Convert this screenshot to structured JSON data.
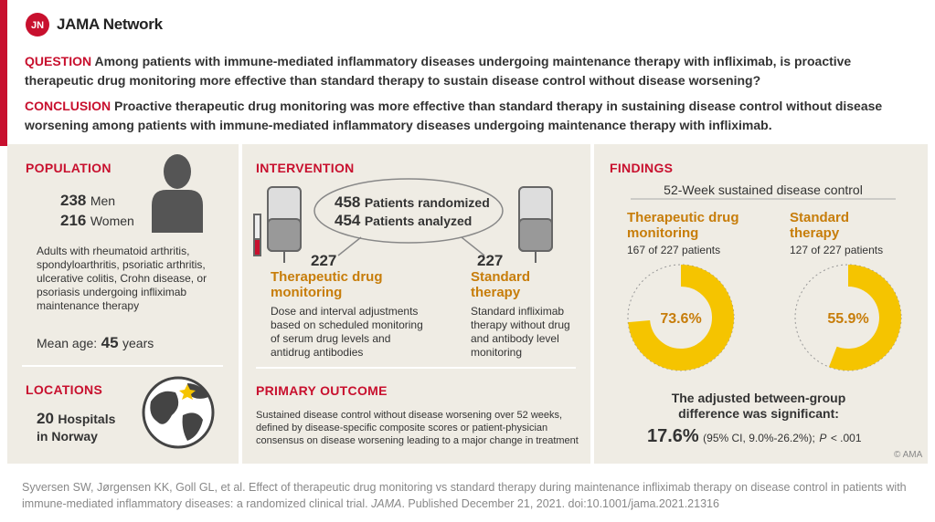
{
  "header": {
    "logo": "JN",
    "brand": "JAMA Network"
  },
  "question": {
    "label": "QUESTION",
    "text": "Among patients with immune-mediated inflammatory diseases undergoing maintenance therapy with infliximab, is proactive therapeutic drug monitoring more effective than standard therapy to sustain disease control without disease worsening?"
  },
  "conclusion": {
    "label": "CONCLUSION",
    "text": "Proactive therapeutic drug monitoring was more effective than standard therapy in sustaining disease control without disease worsening among patients with immune-mediated inflammatory diseases undergoing maintenance therapy with infliximab."
  },
  "population": {
    "heading": "POPULATION",
    "men": {
      "count": 238,
      "label": "Men"
    },
    "women": {
      "count": 216,
      "label": "Women"
    },
    "description": "Adults with rheumatoid arthritis, spondyloarthritis, psoriatic arthritis, ulcerative colitis, Crohn disease, or psoriasis undergoing infliximab maintenance therapy",
    "mean_age": {
      "label": "Mean age:",
      "value": 45,
      "unit": "years"
    }
  },
  "locations": {
    "heading": "LOCATIONS",
    "count": 20,
    "label": "Hospitals in Norway"
  },
  "intervention": {
    "heading": "INTERVENTION",
    "randomized": {
      "count": 458,
      "label": "Patients randomized"
    },
    "analyzed": {
      "count": 454,
      "label": "Patients analyzed"
    },
    "arms": [
      {
        "n": 227,
        "name": "Therapeutic drug monitoring",
        "description": "Dose and interval adjustments based on scheduled monitoring of serum drug levels and antidrug antibodies"
      },
      {
        "n": 227,
        "name": "Standard therapy",
        "description": "Standard infliximab therapy without drug and antibody level monitoring"
      }
    ]
  },
  "primary_outcome": {
    "heading": "PRIMARY OUTCOME",
    "text": "Sustained disease control without disease worsening over 52 weeks, defined by disease-specific composite scores or patient-physician consensus on disease worsening leading to a major change in treatment"
  },
  "findings": {
    "heading": "FINDINGS",
    "subtitle": "52-Week sustained disease control",
    "groups": [
      {
        "name": "Therapeutic drug monitoring",
        "patients": "167 of 227 patients",
        "percent": {
          "value": 73.6,
          "label": "73.6%"
        }
      },
      {
        "name": "Standard therapy",
        "patients": "127 of 227 patients",
        "percent": {
          "value": 55.9,
          "label": "55.9%"
        }
      }
    ],
    "difference_text": "The adjusted between-group difference was significant:",
    "difference": "17.6%",
    "ci": "(95% CI, 9.0%-26.2%);",
    "p_label": "P",
    "p_value": "< .001"
  },
  "copyright": "© AMA",
  "citation": {
    "before": "Syversen SW, Jørgensen KK, Goll GL, et al. Effect of therapeutic drug monitoring vs standard therapy during maintenance infliximab therapy on disease control in patients with immune-mediated inflammatory diseases: a randomized clinical trial.",
    "journal": "JAMA",
    "after": ". Published December 21, 2021. doi:10.1001/jama.2021.21316"
  }
}
